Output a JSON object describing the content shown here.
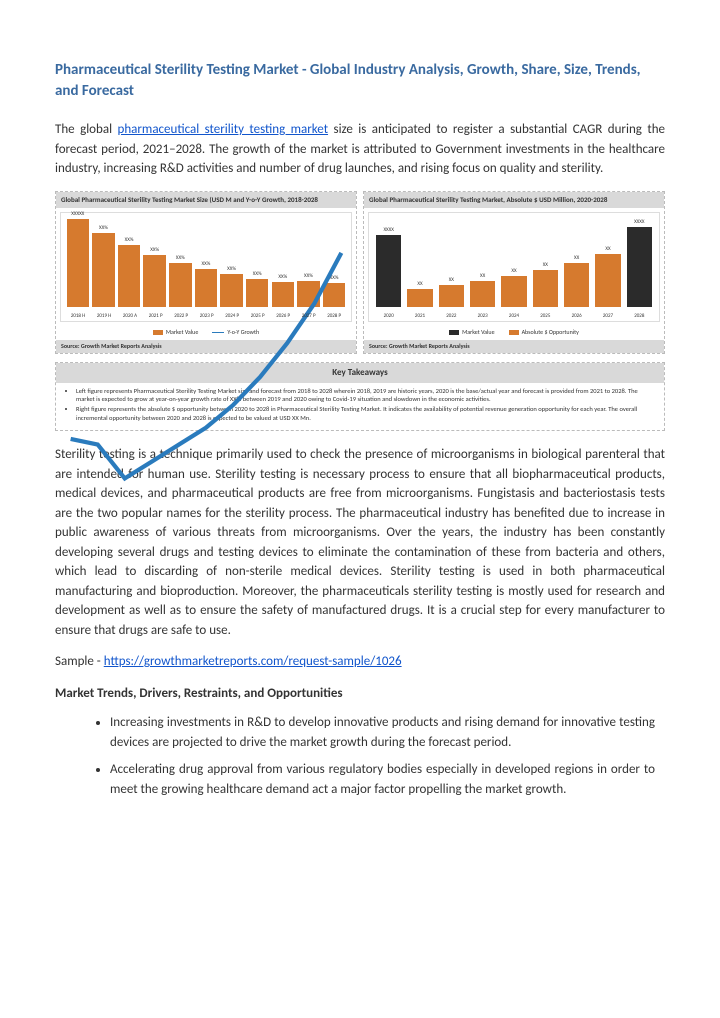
{
  "title": "Pharmaceutical Sterility Testing Market - Global Industry Analysis, Growth, Share, Size, Trends, and Forecast",
  "intro_pre": "The global ",
  "intro_link": "pharmaceutical sterility testing market",
  "intro_post": " size is anticipated to register a substantial CAGR during the forecast period, 2021–2028. The growth of the market is attributed to Government investments in the healthcare industry, increasing R&D activities and number of drug launches, and rising focus on quality and sterility.",
  "chart_left": {
    "title": "Global Pharmaceutical Sterility Testing Market Size (USD M and Y-o-Y Growth, 2018-2028",
    "years": [
      "2018 H",
      "2019 H",
      "2020 A",
      "2021 P",
      "2022 P",
      "2023 P",
      "2024 P",
      "2025 P",
      "2026 P",
      "2027 P",
      "2028 P"
    ],
    "heights": [
      24,
      26,
      25,
      28,
      33,
      38,
      44,
      52,
      62,
      74,
      88
    ],
    "bar_color": "#d67a2e",
    "top_labels": [
      "XX%",
      "XX%",
      "XX%",
      "XX%",
      "XX%",
      "XX%",
      "XX%",
      "XX%",
      "XX%",
      "XX%",
      "XXXXX"
    ],
    "cloud_label": "XXXXX",
    "line_color": "#2a7bbd",
    "line_y": [
      78,
      80,
      92,
      86,
      80,
      74,
      66,
      56,
      44,
      30,
      12
    ],
    "legend1": "Market Value",
    "legend2": "Y-o-Y Growth",
    "source": "Source: Growth Market Reports Analysis"
  },
  "chart_right": {
    "title": "Global Pharmaceutical Sterility Testing Market, Absolute $ USD Million, 2020-2028",
    "years": [
      "2020",
      "2021",
      "2022",
      "2023",
      "2024",
      "2025",
      "2026",
      "2027",
      "2028"
    ],
    "heights": [
      72,
      18,
      22,
      26,
      31,
      37,
      44,
      53,
      80
    ],
    "bar_color_first": "#2b2b2b",
    "bar_color_rest": "#d67a2e",
    "bar_color_last": "#2b2b2b",
    "top_labels": [
      "XXXX",
      "XX",
      "XX",
      "XX",
      "XX",
      "XX",
      "XX",
      "XX",
      "XXXX"
    ],
    "legend1": "Market Value",
    "legend2": "Absolute $ Opportunity",
    "source": "Source: Growth Market Reports Analysis"
  },
  "takeaways": {
    "header": "Key Takeaways",
    "items": [
      "Left figure represents Pharmaceutical Sterility Testing Market size and forecast from 2018 to 2028 wherein 2018, 2019 are historic years, 2020 is the base/actual year and forecast is provided from 2021 to 2028. The market is expected to grow at year-on-year growth rate of XX% between 2019 and 2020 owing to Covid-19 situation and slowdown in the economic activities.",
      "Right figure represents the absolute $ opportunity between 2020 to 2028 in Pharmaceutical Sterility Testing Market. It indicates the availability of potential revenue generation opportunity for each year. The overall incremental opportunity between 2020 and 2028 is expected to be valued at USD XX Mn."
    ]
  },
  "body_para": "Sterility testing is a technique primarily used to check the presence of microorganisms in biological parenteral that are intended for human use. Sterility testing is necessary process to ensure that all biopharmaceutical products, medical devices, and pharmaceutical products are free from microorganisms. Fungistasis and bacteriostasis tests are the two popular names for the sterility process. The pharmaceutical industry has benefited due to increase in public awareness of various threats from microorganisms. Over the years, the industry has been constantly developing several drugs and testing devices to eliminate the contamination of these from bacteria and others, which lead to discarding of non-sterile medical devices. Sterility testing is used in both pharmaceutical manufacturing and bioproduction. Moreover, the pharmaceuticals sterility testing is mostly used for research and development as well as to ensure the safety of manufactured drugs. It is a crucial step for every manufacturer to ensure that drugs are safe to use.",
  "sample_label": "Sample - ",
  "sample_url": "https://growthmarketreports.com/request-sample/1026",
  "trends_header": "Market Trends, Drivers, Restraints, and Opportunities",
  "trends": [
    "Increasing investments in R&D to develop innovative products and rising demand for innovative testing devices are projected to drive the market growth during the forecast period.",
    "Accelerating drug approval from various regulatory bodies especially in developed regions in order to meet the growing healthcare demand act a major factor propelling the market growth."
  ]
}
